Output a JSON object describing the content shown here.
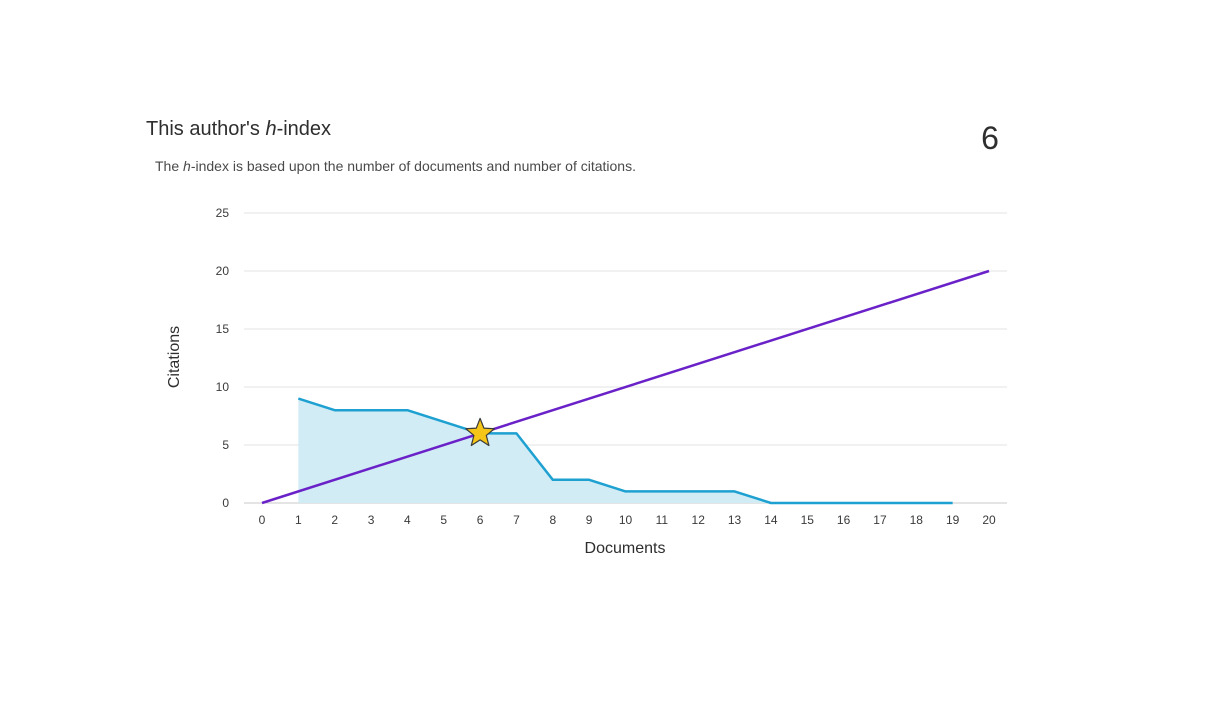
{
  "header": {
    "title_prefix": "This author's ",
    "title_h": "h",
    "title_suffix": "-index",
    "h_value": "6",
    "subtitle_prefix": "The ",
    "subtitle_h": "h",
    "subtitle_suffix": "-index is based upon the number of documents and number of citations."
  },
  "chart_data": {
    "type": "area",
    "xlabel": "Documents",
    "ylabel": "Citations",
    "xlim": [
      0,
      20
    ],
    "ylim": [
      0,
      25
    ],
    "x_ticks": [
      "0",
      "1",
      "2",
      "3",
      "4",
      "5",
      "6",
      "7",
      "8",
      "9",
      "10",
      "11",
      "12",
      "13",
      "14",
      "15",
      "16",
      "17",
      "18",
      "19",
      "20"
    ],
    "y_ticks": [
      "0",
      "5",
      "10",
      "15",
      "20",
      "25"
    ],
    "grid": true,
    "series": [
      {
        "kind": "area",
        "color": "#1ea1d1",
        "fill": "#d2ecf5",
        "points": [
          [
            1,
            9
          ],
          [
            2,
            8
          ],
          [
            3,
            8
          ],
          [
            4,
            8
          ],
          [
            5,
            7
          ],
          [
            6,
            6
          ],
          [
            7,
            6
          ],
          [
            8,
            2
          ],
          [
            9,
            2
          ],
          [
            10,
            1
          ],
          [
            11,
            1
          ],
          [
            12,
            1
          ],
          [
            13,
            1
          ],
          [
            14,
            0
          ],
          [
            15,
            0
          ],
          [
            16,
            0
          ],
          [
            17,
            0
          ],
          [
            18,
            0
          ],
          [
            19,
            0
          ]
        ]
      },
      {
        "kind": "line",
        "color": "#6a22c8",
        "points": [
          [
            0,
            0
          ],
          [
            20,
            20
          ]
        ]
      }
    ],
    "h_index_marker": {
      "x": 6,
      "y": 6,
      "color": "#f5c518"
    }
  }
}
